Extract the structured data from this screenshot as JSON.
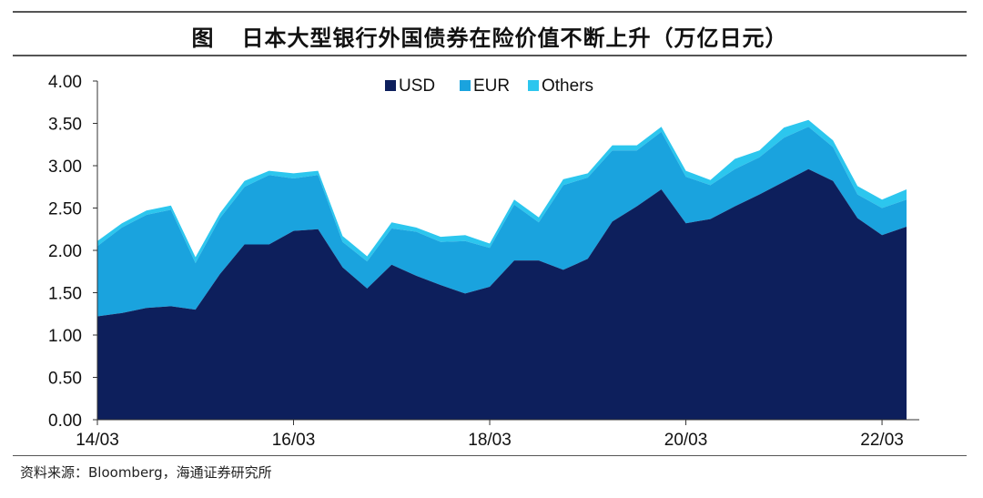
{
  "header": {
    "figure_label": "图",
    "title": "日本大型银行外国债券在险价值不断上升（万亿日元）"
  },
  "footer": {
    "source": "资料来源：Bloomberg，海通证券研究所"
  },
  "colors": {
    "USD": "#0d1f5c",
    "EUR": "#1aa3de",
    "Others": "#2cc6ee"
  },
  "chart_data": {
    "type": "area",
    "stacked": true,
    "title": "日本大型银行外国债券在险价值不断上升（万亿日元）",
    "xlabel": "",
    "ylabel": "",
    "ylim": [
      0,
      4.0
    ],
    "yticks": [
      "0.00",
      "0.50",
      "1.00",
      "1.50",
      "2.00",
      "2.50",
      "3.00",
      "3.50",
      "4.00"
    ],
    "xticks": [
      "14/03",
      "16/03",
      "18/03",
      "20/03",
      "22/03"
    ],
    "legend_position": "top-center",
    "grid": false,
    "x": [
      "14/03",
      "14/06",
      "14/09",
      "14/12",
      "15/03",
      "15/06",
      "15/09",
      "15/12",
      "16/03",
      "16/06",
      "16/09",
      "16/12",
      "17/03",
      "17/06",
      "17/09",
      "17/12",
      "18/03",
      "18/06",
      "18/09",
      "18/12",
      "19/03",
      "19/06",
      "19/09",
      "19/12",
      "20/03",
      "20/06",
      "20/09",
      "20/12",
      "21/03",
      "21/06",
      "21/09",
      "21/12",
      "22/03",
      "22/06"
    ],
    "series": [
      {
        "name": "USD",
        "values": [
          1.22,
          1.26,
          1.32,
          1.34,
          1.3,
          1.72,
          2.07,
          2.07,
          2.23,
          2.25,
          1.8,
          1.55,
          1.83,
          1.7,
          1.59,
          1.49,
          1.57,
          1.88,
          1.88,
          1.77,
          1.9,
          2.34,
          2.52,
          2.72,
          2.32,
          2.37,
          2.52,
          2.66,
          2.81,
          2.96,
          2.82,
          2.38,
          2.18,
          2.28
        ]
      },
      {
        "name": "EUR",
        "values": [
          0.83,
          1.01,
          1.1,
          1.14,
          0.55,
          0.66,
          0.68,
          0.82,
          0.62,
          0.64,
          0.3,
          0.32,
          0.43,
          0.52,
          0.51,
          0.62,
          0.46,
          0.66,
          0.45,
          1.0,
          0.96,
          0.84,
          0.66,
          0.68,
          0.55,
          0.4,
          0.44,
          0.44,
          0.52,
          0.5,
          0.4,
          0.28,
          0.32,
          0.32
        ]
      },
      {
        "name": "Others",
        "values": [
          0.06,
          0.05,
          0.05,
          0.05,
          0.07,
          0.06,
          0.07,
          0.05,
          0.06,
          0.05,
          0.07,
          0.06,
          0.07,
          0.05,
          0.06,
          0.07,
          0.05,
          0.06,
          0.06,
          0.07,
          0.05,
          0.06,
          0.06,
          0.06,
          0.07,
          0.06,
          0.12,
          0.08,
          0.12,
          0.08,
          0.08,
          0.1,
          0.1,
          0.12
        ]
      }
    ]
  }
}
